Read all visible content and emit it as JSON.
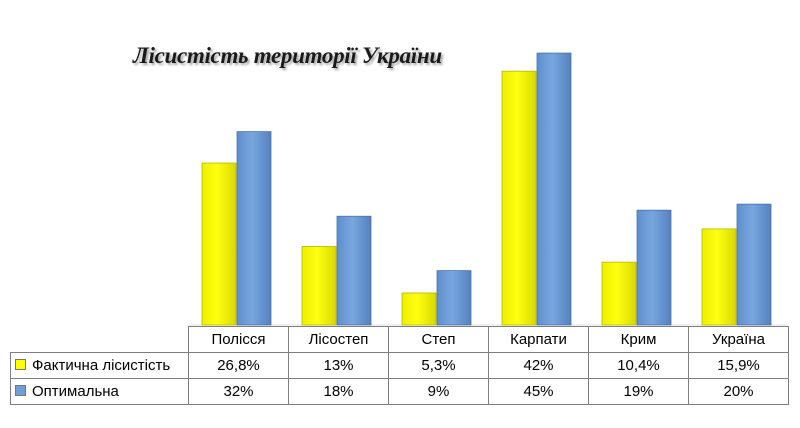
{
  "chart_data": {
    "type": "bar",
    "title": "Лісистість території  України",
    "categories": [
      "Полісся",
      "Лісостеп",
      "Степ",
      "Карпати",
      "Крим",
      "Україна"
    ],
    "series": [
      {
        "name": "Фактична лісистість",
        "values": [
          26.8,
          13,
          5.3,
          42,
          10.4,
          15.9
        ],
        "labels": [
          "26,8%",
          "13%",
          "5,3%",
          "42%",
          "10,4%",
          "15,9%"
        ],
        "color": "#ffff00"
      },
      {
        "name": "Оптимальна",
        "values": [
          32,
          18,
          9,
          45,
          19,
          20
        ],
        "labels": [
          "32%",
          "18%",
          "9%",
          "45%",
          "19%",
          "20%"
        ],
        "color": "#6f9fd8"
      }
    ],
    "ylim": [
      0,
      46
    ],
    "grid": false,
    "legend": "data-table"
  }
}
